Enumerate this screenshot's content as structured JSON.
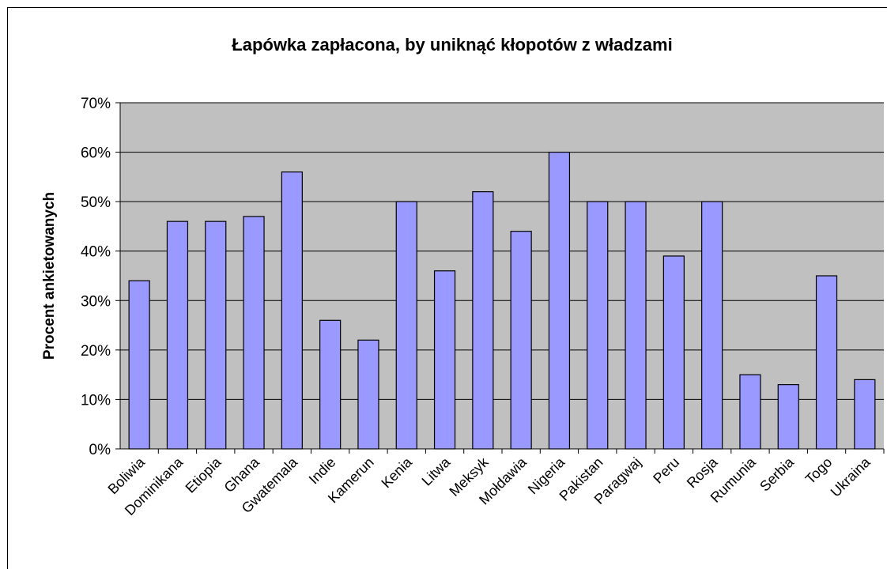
{
  "chart_data": {
    "type": "bar",
    "title": "Łapówka zapłacona, by uniknąć kłopotów z władzami",
    "y_label": "Procent ankietowanych",
    "categories": [
      "Boliwia",
      "Dominikana",
      "Etiopia",
      "Ghana",
      "Gwatemala",
      "Indie",
      "Kamerun",
      "Kenia",
      "Litwa",
      "Meksyk",
      "Mołdawia",
      "Nigeria",
      "Pakistan",
      "Paragwaj",
      "Peru",
      "Rosja",
      "Rumunia",
      "Serbia",
      "Togo",
      "Ukraina"
    ],
    "values": [
      34,
      46,
      46,
      47,
      56,
      26,
      22,
      50,
      36,
      52,
      44,
      60,
      50,
      50,
      39,
      50,
      15,
      13,
      35,
      14
    ],
    "color": "#9999ff",
    "ylim": [
      0,
      70
    ],
    "yticks": [
      {
        "value": 0,
        "label": "0%"
      },
      {
        "value": 10,
        "label": "10%"
      },
      {
        "value": 20,
        "label": "20%"
      },
      {
        "value": 30,
        "label": "30%"
      },
      {
        "value": 40,
        "label": "40%"
      },
      {
        "value": 50,
        "label": "50%"
      },
      {
        "value": 60,
        "label": "60%"
      },
      {
        "value": 70,
        "label": "70%"
      }
    ],
    "grid": true
  }
}
